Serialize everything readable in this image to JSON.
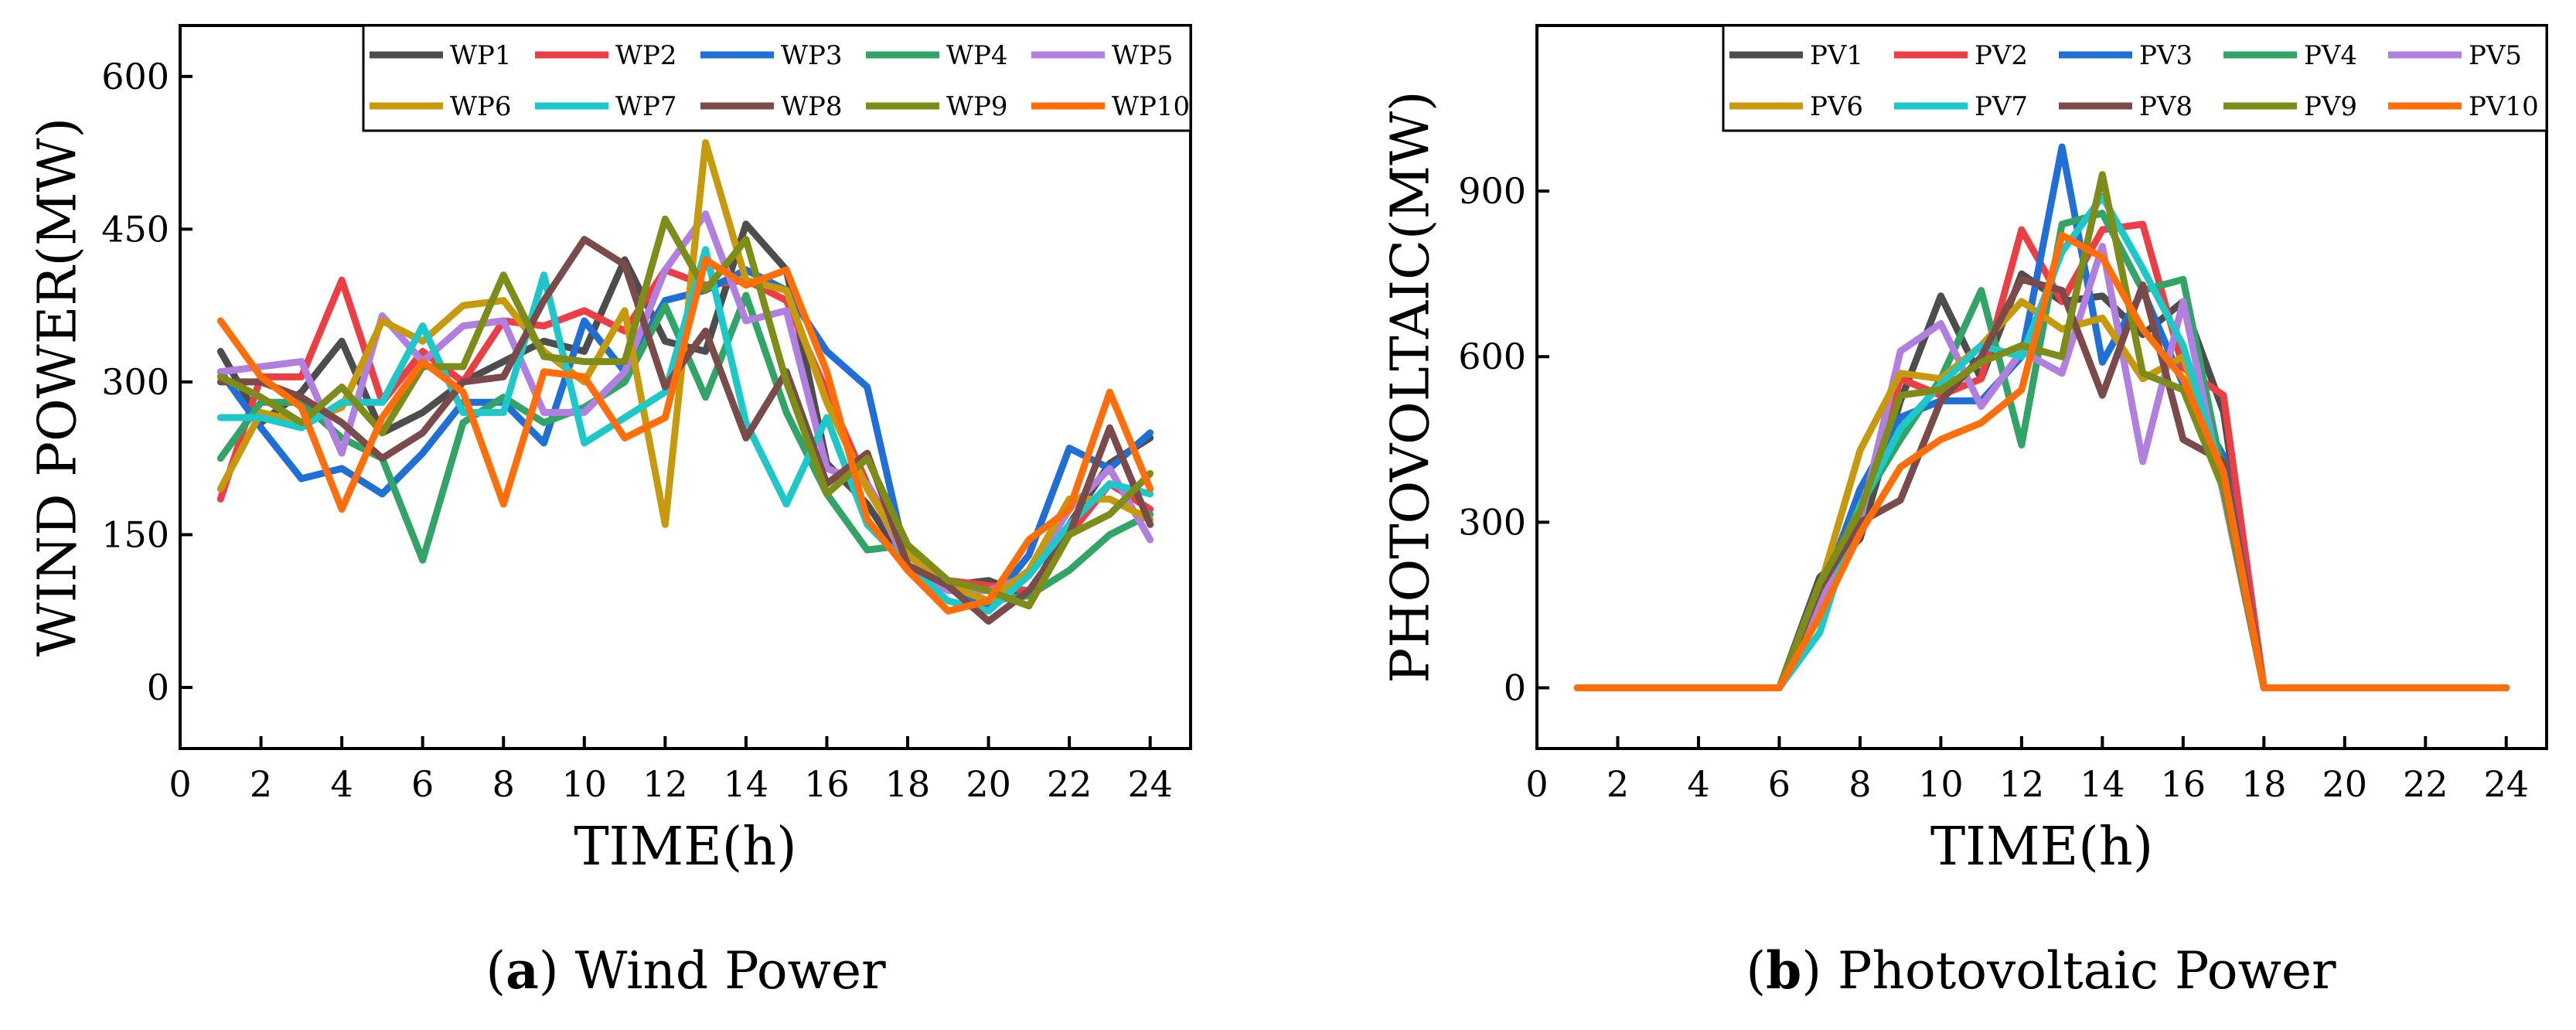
{
  "chart_data": [
    {
      "type": "line",
      "xlabel": "TIME(h)",
      "ylabel": "WIND POWER(MW)",
      "xlim": [
        0,
        25
      ],
      "ylim": [
        -60,
        650
      ],
      "xticks": [
        0,
        2,
        4,
        6,
        8,
        10,
        12,
        14,
        16,
        18,
        20,
        22,
        24
      ],
      "yticks": [
        0,
        150,
        300,
        450,
        600
      ],
      "caption_letter": "a",
      "caption_text": "Wind Power",
      "x": [
        1,
        2,
        3,
        4,
        5,
        6,
        7,
        8,
        9,
        10,
        11,
        12,
        13,
        14,
        15,
        16,
        17,
        18,
        19,
        20,
        21,
        22,
        23,
        24
      ],
      "series": [
        {
          "name": "WP1",
          "color": "#4d4d4d",
          "values": [
            330,
            260,
            290,
            340,
            250,
            270,
            300,
            320,
            340,
            330,
            420,
            340,
            330,
            455,
            410,
            220,
            180,
            120,
            100,
            105,
            90,
            160,
            220,
            245
          ]
        },
        {
          "name": "WP2",
          "color": "#ec3f45",
          "values": [
            185,
            305,
            305,
            400,
            280,
            330,
            300,
            360,
            355,
            370,
            350,
            410,
            395,
            400,
            380,
            290,
            200,
            130,
            105,
            100,
            95,
            150,
            200,
            175
          ]
        },
        {
          "name": "WP3",
          "color": "#1f6fd6",
          "values": [
            310,
            255,
            205,
            215,
            190,
            230,
            280,
            280,
            240,
            360,
            310,
            380,
            390,
            410,
            390,
            330,
            295,
            120,
            100,
            80,
            130,
            235,
            215,
            250
          ]
        },
        {
          "name": "WP4",
          "color": "#33a467",
          "values": [
            225,
            280,
            280,
            245,
            225,
            125,
            260,
            285,
            260,
            275,
            300,
            375,
            285,
            385,
            270,
            190,
            135,
            140,
            100,
            85,
            90,
            115,
            150,
            170
          ]
        },
        {
          "name": "WP5",
          "color": "#b07fe0",
          "values": [
            310,
            315,
            320,
            230,
            365,
            320,
            355,
            360,
            270,
            270,
            310,
            410,
            465,
            360,
            370,
            215,
            200,
            120,
            95,
            95,
            110,
            175,
            215,
            145
          ]
        },
        {
          "name": "WP6",
          "color": "#c69a0c",
          "values": [
            195,
            270,
            260,
            275,
            360,
            340,
            375,
            380,
            330,
            300,
            370,
            160,
            535,
            400,
            390,
            280,
            195,
            130,
            100,
            85,
            115,
            185,
            185,
            165
          ]
        },
        {
          "name": "WP7",
          "color": "#1ec8c8",
          "values": [
            265,
            265,
            255,
            280,
            280,
            355,
            270,
            270,
            405,
            240,
            265,
            290,
            430,
            260,
            180,
            265,
            160,
            120,
            85,
            75,
            110,
            160,
            200,
            190
          ]
        },
        {
          "name": "WP8",
          "color": "#7b4b4b",
          "values": [
            300,
            300,
            285,
            260,
            225,
            250,
            300,
            305,
            380,
            440,
            415,
            295,
            350,
            245,
            310,
            200,
            230,
            120,
            100,
            65,
            95,
            150,
            255,
            160
          ]
        },
        {
          "name": "WP9",
          "color": "#7e8c1a",
          "values": [
            305,
            285,
            260,
            295,
            250,
            315,
            315,
            405,
            325,
            320,
            320,
            460,
            390,
            440,
            300,
            190,
            225,
            140,
            105,
            95,
            80,
            150,
            170,
            210
          ]
        },
        {
          "name": "WP10",
          "color": "#ff6e0a",
          "values": [
            360,
            305,
            275,
            175,
            265,
            320,
            290,
            180,
            310,
            305,
            245,
            265,
            420,
            395,
            410,
            310,
            165,
            115,
            75,
            85,
            145,
            175,
            290,
            195
          ]
        }
      ]
    },
    {
      "type": "line",
      "xlabel": "TIME(h)",
      "ylabel": "PHOTOVOLTAIC(MW)",
      "xlim": [
        0,
        25
      ],
      "ylim": [
        -110,
        1200
      ],
      "xticks": [
        0,
        2,
        4,
        6,
        8,
        10,
        12,
        14,
        16,
        18,
        20,
        22,
        24
      ],
      "yticks": [
        0,
        300,
        600,
        900
      ],
      "caption_letter": "b",
      "caption_text": "Photovoltaic Power",
      "x": [
        1,
        2,
        3,
        4,
        5,
        6,
        7,
        8,
        9,
        10,
        11,
        12,
        13,
        14,
        15,
        16,
        17,
        18,
        19,
        20,
        21,
        22,
        23,
        24
      ],
      "series": [
        {
          "name": "PV1",
          "color": "#4d4d4d",
          "values": [
            0,
            0,
            0,
            0,
            0,
            0,
            200,
            270,
            520,
            710,
            560,
            750,
            700,
            710,
            640,
            700,
            500,
            0,
            0,
            0,
            0,
            0,
            0,
            0
          ]
        },
        {
          "name": "PV2",
          "color": "#ec3f45",
          "values": [
            0,
            0,
            0,
            0,
            0,
            0,
            180,
            310,
            560,
            530,
            560,
            830,
            700,
            830,
            840,
            580,
            530,
            0,
            0,
            0,
            0,
            0,
            0,
            0
          ]
        },
        {
          "name": "PV3",
          "color": "#1f6fd6",
          "values": [
            0,
            0,
            0,
            0,
            0,
            0,
            160,
            360,
            490,
            520,
            520,
            600,
            980,
            590,
            720,
            550,
            420,
            0,
            0,
            0,
            0,
            0,
            0,
            0
          ]
        },
        {
          "name": "PV4",
          "color": "#33a467",
          "values": [
            0,
            0,
            0,
            0,
            0,
            0,
            170,
            330,
            450,
            560,
            720,
            440,
            840,
            860,
            720,
            740,
            380,
            0,
            0,
            0,
            0,
            0,
            0,
            0
          ]
        },
        {
          "name": "PV5",
          "color": "#b07fe0",
          "values": [
            0,
            0,
            0,
            0,
            0,
            0,
            150,
            300,
            610,
            660,
            510,
            610,
            570,
            800,
            410,
            700,
            350,
            0,
            0,
            0,
            0,
            0,
            0,
            0
          ]
        },
        {
          "name": "PV6",
          "color": "#c69a0c",
          "values": [
            0,
            0,
            0,
            0,
            0,
            0,
            180,
            430,
            570,
            560,
            620,
            700,
            650,
            670,
            560,
            600,
            380,
            0,
            0,
            0,
            0,
            0,
            0,
            0
          ]
        },
        {
          "name": "PV7",
          "color": "#1ec8c8",
          "values": [
            0,
            0,
            0,
            0,
            0,
            0,
            100,
            330,
            470,
            550,
            620,
            600,
            790,
            890,
            760,
            620,
            380,
            0,
            0,
            0,
            0,
            0,
            0,
            0
          ]
        },
        {
          "name": "PV8",
          "color": "#7b4b4b",
          "values": [
            0,
            0,
            0,
            0,
            0,
            0,
            180,
            300,
            340,
            520,
            600,
            740,
            720,
            530,
            730,
            450,
            410,
            0,
            0,
            0,
            0,
            0,
            0,
            0
          ]
        },
        {
          "name": "PV9",
          "color": "#7e8c1a",
          "values": [
            0,
            0,
            0,
            0,
            0,
            0,
            190,
            320,
            530,
            540,
            590,
            620,
            600,
            930,
            570,
            540,
            360,
            0,
            0,
            0,
            0,
            0,
            0,
            0
          ]
        },
        {
          "name": "PV10",
          "color": "#ff6e0a",
          "values": [
            0,
            0,
            0,
            0,
            0,
            0,
            130,
            280,
            400,
            450,
            480,
            540,
            820,
            780,
            650,
            560,
            390,
            0,
            0,
            0,
            0,
            0,
            0,
            0
          ]
        }
      ]
    }
  ]
}
